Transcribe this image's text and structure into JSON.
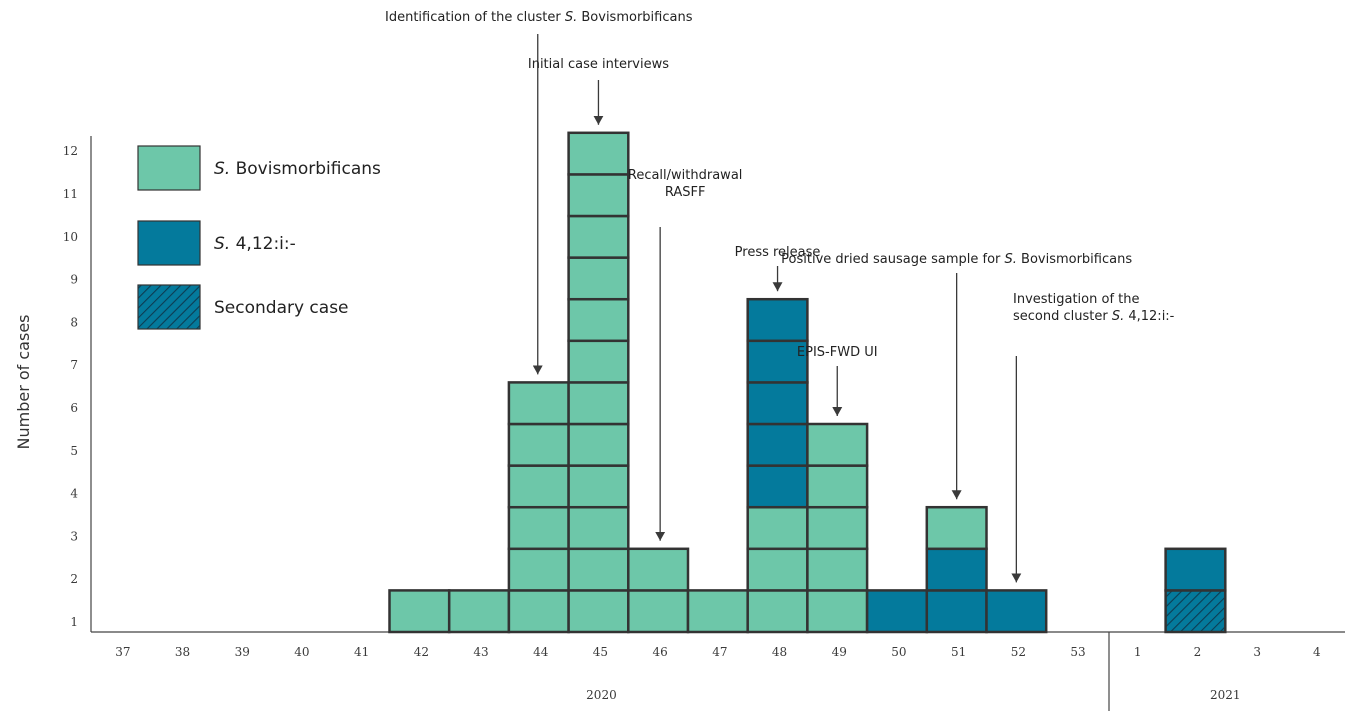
{
  "chart_data": {
    "type": "bar",
    "stacked": true,
    "unit": "square per case",
    "ylabel": "Number of cases",
    "yticks": [
      1,
      2,
      3,
      4,
      5,
      6,
      7,
      8,
      9,
      10,
      11,
      12
    ],
    "x": [
      "37",
      "38",
      "39",
      "40",
      "41",
      "42",
      "43",
      "44",
      "45",
      "46",
      "47",
      "48",
      "49",
      "50",
      "51",
      "52",
      "53",
      "1",
      "2",
      "3",
      "4"
    ],
    "year_groups": [
      {
        "label": "2020",
        "from": "37",
        "to": "53"
      },
      {
        "label": "2021",
        "from": "1",
        "to": "4"
      }
    ],
    "series": [
      {
        "name": "S. Bovismorbificans",
        "legend_prefix": "S.",
        "legend_text": " Bovismorbificans",
        "color": "#6dc7a9",
        "pattern": "none",
        "values": [
          0,
          0,
          0,
          0,
          0,
          1,
          1,
          6,
          12,
          2,
          1,
          3,
          5,
          0,
          1,
          0,
          0,
          0,
          0,
          0,
          0
        ]
      },
      {
        "name": "S. 4,12:i:-",
        "legend_prefix": "S.",
        "legend_text": " 4,12:i:-",
        "color": "#047a9c",
        "pattern": "none",
        "values": [
          0,
          0,
          0,
          0,
          0,
          0,
          0,
          0,
          0,
          0,
          0,
          5,
          0,
          1,
          2,
          1,
          0,
          0,
          1,
          0,
          0
        ]
      },
      {
        "name": "Secondary case",
        "legend_prefix": "",
        "legend_text": "Secondary case",
        "color": "#047a9c",
        "pattern": "hatch",
        "values": [
          0,
          0,
          0,
          0,
          0,
          0,
          0,
          0,
          0,
          0,
          0,
          0,
          0,
          0,
          0,
          0,
          0,
          0,
          1,
          0,
          0
        ]
      }
    ],
    "stack_order": {
      "48": [
        "S. Bovismorbificans",
        "S. 4,12:i:-"
      ],
      "51": [
        "S. 4,12:i:-",
        "S. Bovismorbificans"
      ],
      "2": [
        "Secondary case",
        "S. 4,12:i:-"
      ]
    },
    "annotations": [
      {
        "week": "44",
        "lines": [
          {
            "parts": [
              [
                "Identification of the cluster ",
                false
              ],
              [
                "S.",
                true
              ],
              [
                " Bovismorbificans",
                false
              ]
            ]
          }
        ]
      },
      {
        "week": "45",
        "lines": [
          {
            "parts": [
              [
                "Initial case interviews",
                false
              ]
            ]
          }
        ]
      },
      {
        "week": "46",
        "lines": [
          {
            "parts": [
              [
                "Recall/withdrawal",
                false
              ]
            ]
          },
          {
            "parts": [
              [
                "RASFF",
                false
              ]
            ]
          }
        ]
      },
      {
        "week": "48",
        "lines": [
          {
            "parts": [
              [
                "Press release",
                false
              ]
            ]
          }
        ]
      },
      {
        "week": "49",
        "lines": [
          {
            "parts": [
              [
                "EPIS-FWD UI",
                false
              ]
            ]
          }
        ]
      },
      {
        "week": "51",
        "lines": [
          {
            "parts": [
              [
                "Positive dried sausage sample for ",
                false
              ],
              [
                "S.",
                true
              ],
              [
                " Bovismorbificans",
                false
              ]
            ]
          }
        ]
      },
      {
        "week": "52",
        "lines": [
          {
            "parts": [
              [
                "Investigation of the",
                false
              ]
            ]
          },
          {
            "parts": [
              [
                "second cluster ",
                false
              ],
              [
                "S.",
                true
              ],
              [
                " 4,12:i:-",
                false
              ]
            ]
          }
        ]
      }
    ]
  }
}
